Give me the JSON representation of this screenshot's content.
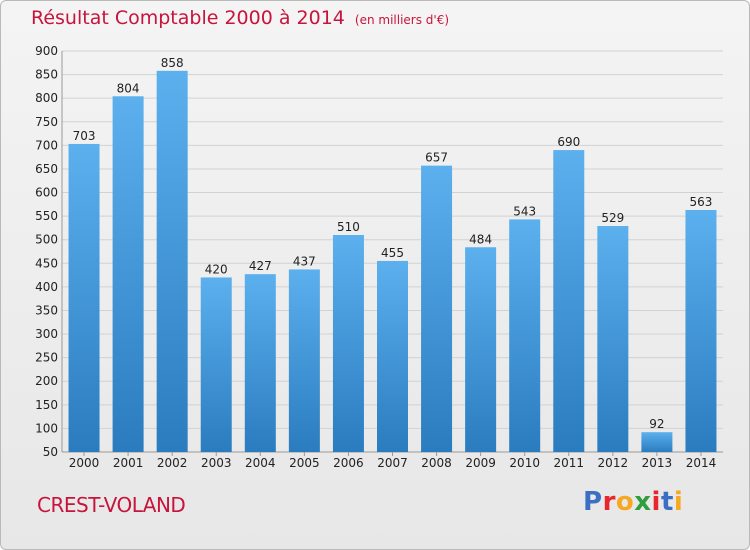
{
  "header": {
    "title": "Résultat Comptable 2000 à 2014",
    "unit": "(en milliers d'€)"
  },
  "commune": "CREST-VOLAND",
  "logo": {
    "text": "Proxiti",
    "letter_colors": [
      "#3a6fc4",
      "#e8262d",
      "#f7a823",
      "#2e9e3e",
      "#e8262d",
      "#3a6fc4",
      "#f7a823"
    ]
  },
  "colors": {
    "bar_top": "#5cb0ee",
    "bar_bottom": "#2a7cbf",
    "title": "#c8143c"
  },
  "chart_data": {
    "type": "bar",
    "title": "Résultat Comptable 2000 à 2014",
    "xlabel": "",
    "ylabel": "",
    "categories": [
      "2000",
      "2001",
      "2002",
      "2003",
      "2004",
      "2005",
      "2006",
      "2007",
      "2008",
      "2009",
      "2010",
      "2011",
      "2012",
      "2013",
      "2014"
    ],
    "values": [
      703,
      804,
      858,
      420,
      427,
      437,
      510,
      455,
      657,
      484,
      543,
      690,
      529,
      92,
      563
    ],
    "ylim": [
      50,
      900
    ],
    "yticks": [
      50,
      100,
      150,
      200,
      250,
      300,
      350,
      400,
      450,
      500,
      550,
      600,
      650,
      700,
      750,
      800,
      850,
      900
    ],
    "grid": true
  }
}
